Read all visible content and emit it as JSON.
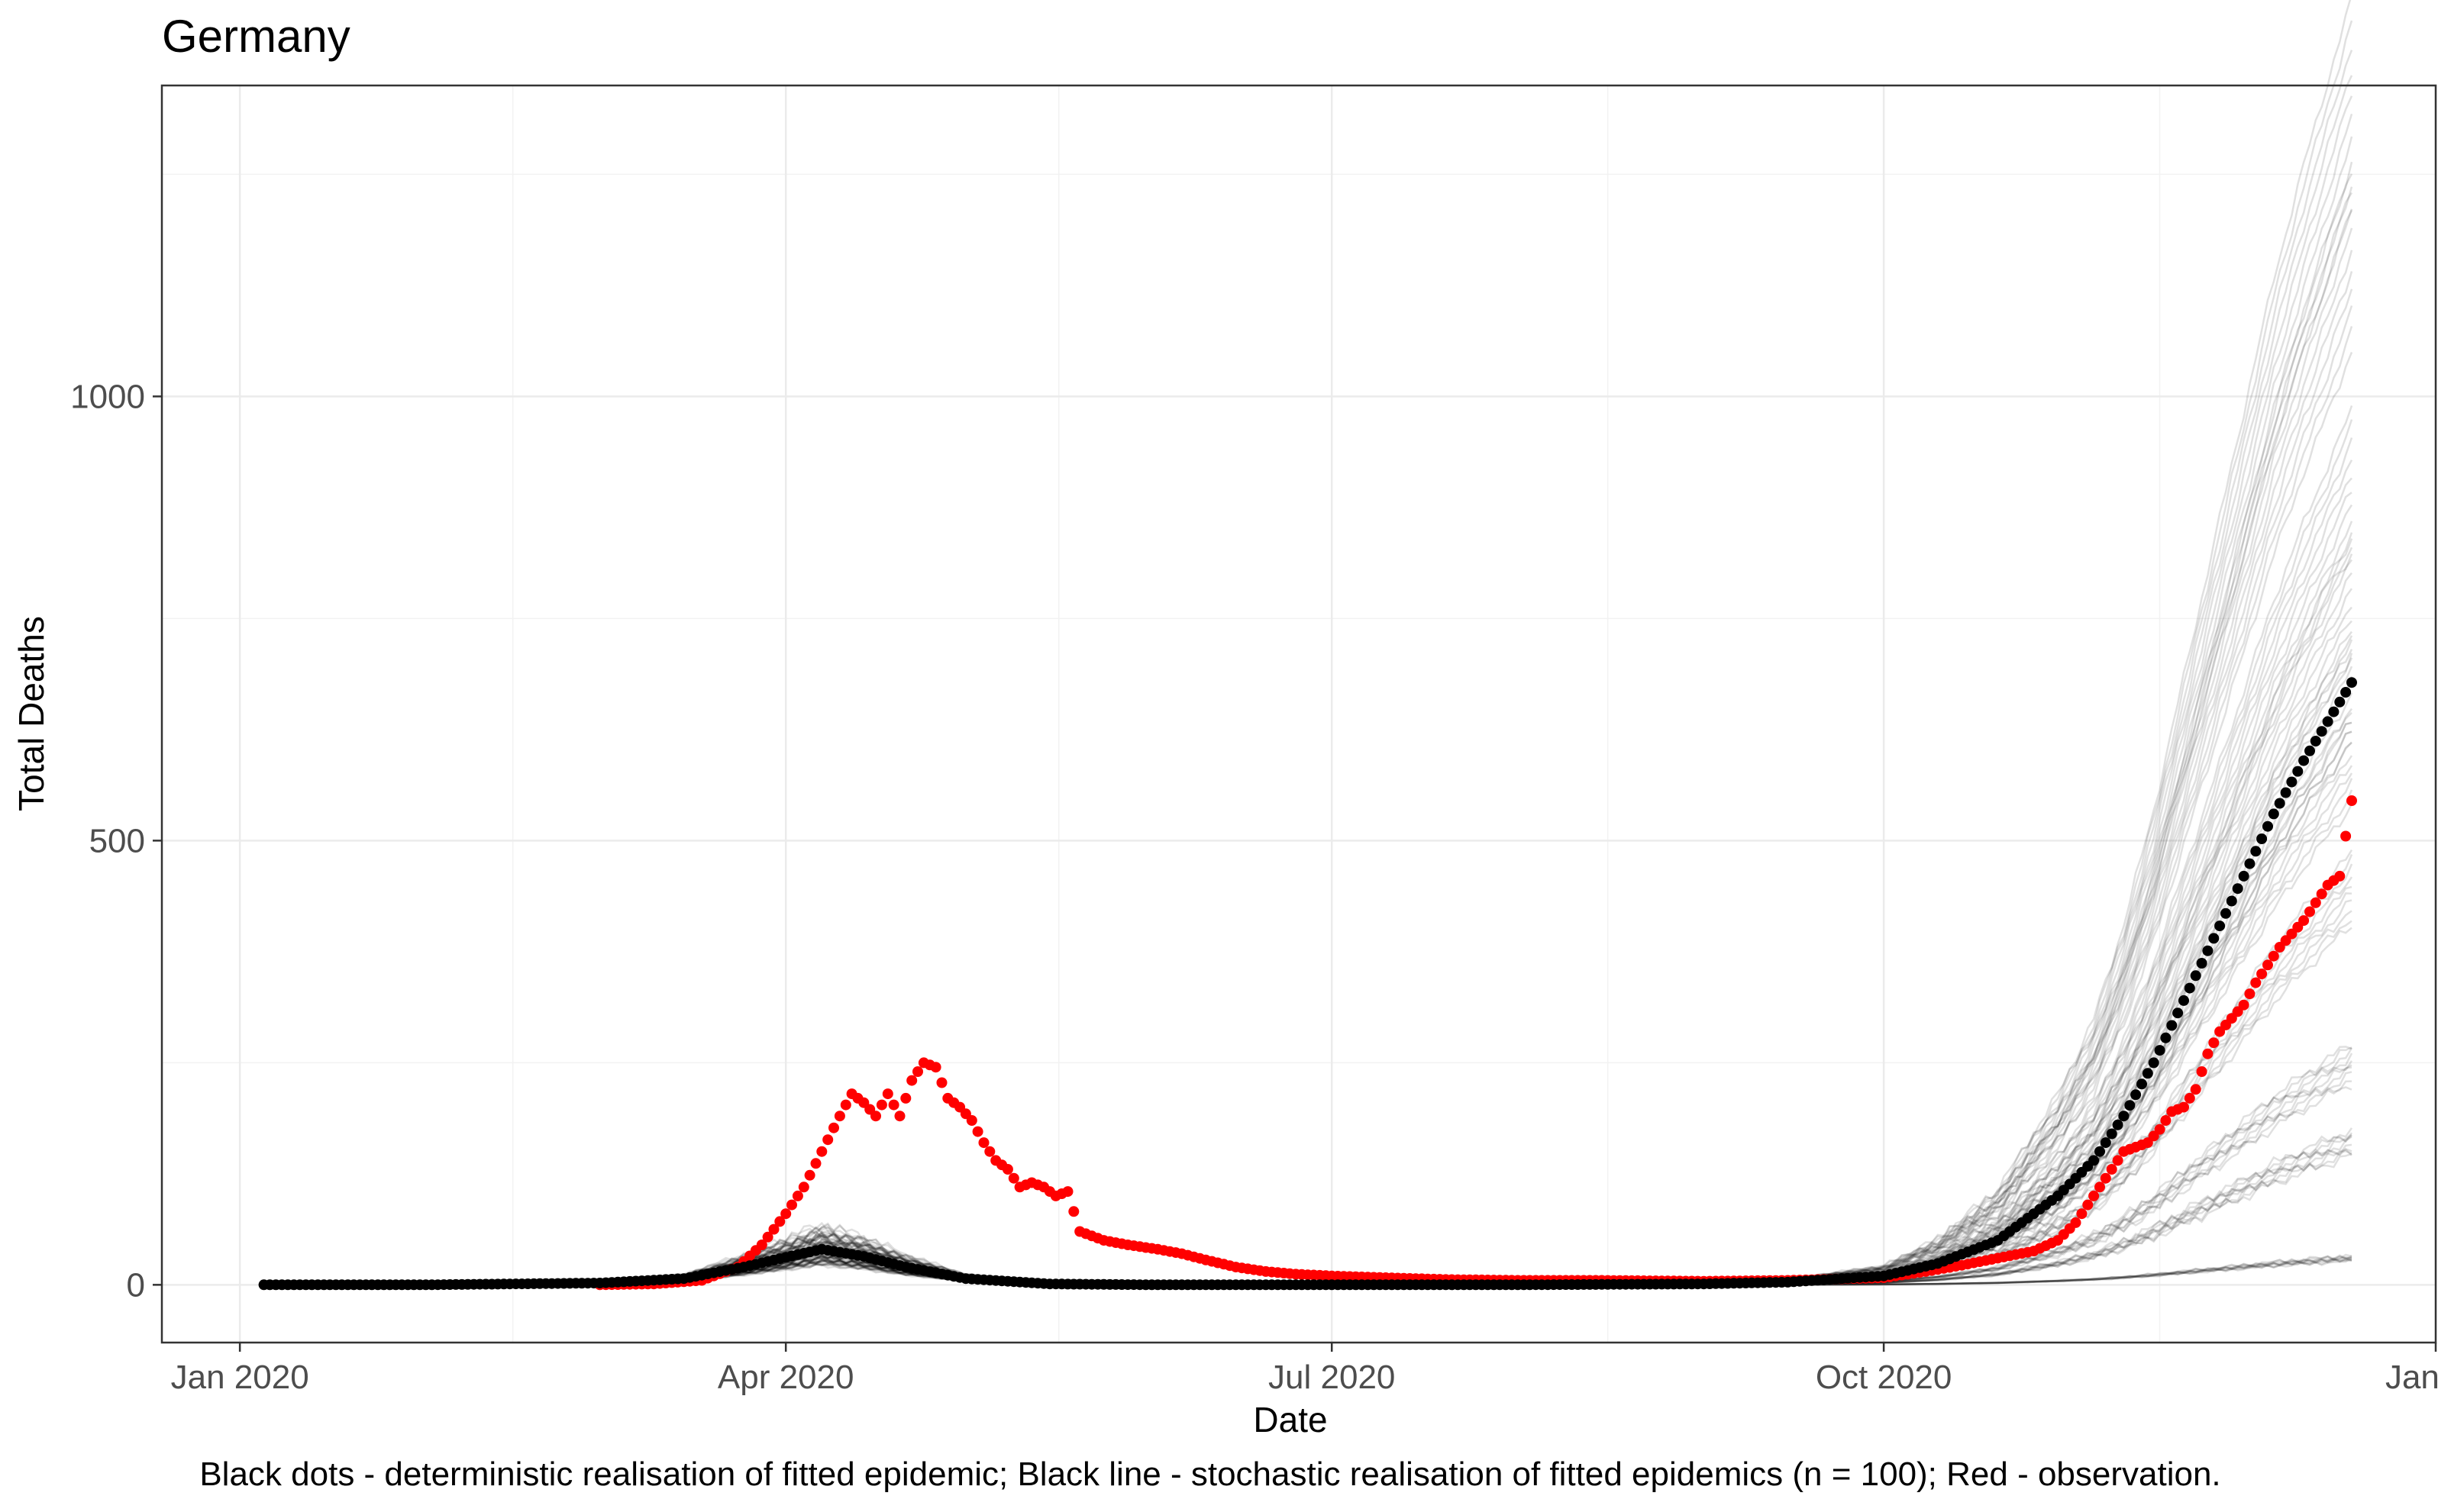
{
  "chart_data": {
    "type": "scatter",
    "title": "Germany",
    "xlabel": "Date",
    "ylabel": "Total Deaths",
    "caption": "Black dots - deterministic realisation of fitted epidemic; Black line - stochastic realisation of fitted epidemics (n = 100); Red - observation.",
    "x_axis": {
      "type": "date",
      "range": [
        "2019-12-19",
        "2021-01-01"
      ],
      "ticks": [
        {
          "date": "2020-01-01",
          "label": "Jan 2020"
        },
        {
          "date": "2020-04-01",
          "label": "Apr 2020"
        },
        {
          "date": "2020-07-01",
          "label": "Jul 2020"
        },
        {
          "date": "2020-10-01",
          "label": "Oct 2020"
        },
        {
          "date": "2021-01-01",
          "label": "Jan 20"
        }
      ]
    },
    "y_axis": {
      "range": [
        -65,
        1350
      ],
      "ticks": [
        {
          "value": 0,
          "label": "0"
        },
        {
          "value": 500,
          "label": "500"
        },
        {
          "value": 1000,
          "label": "1000"
        }
      ]
    },
    "grid": true,
    "colors": {
      "observation": "#ff0000",
      "deterministic": "#000000",
      "stochastic": "#000000",
      "grid": "#ebebeb",
      "panel_border": "#333333"
    },
    "series": [
      {
        "role": "deterministic",
        "mark": "dots",
        "color": "#000000",
        "points": [
          [
            "2020-01-05",
            0
          ],
          [
            "2020-02-01",
            0
          ],
          [
            "2020-03-01",
            2
          ],
          [
            "2020-03-15",
            7
          ],
          [
            "2020-03-25",
            20
          ],
          [
            "2020-04-01",
            31
          ],
          [
            "2020-04-07",
            40
          ],
          [
            "2020-04-14",
            32
          ],
          [
            "2020-04-21",
            20
          ],
          [
            "2020-05-01",
            7
          ],
          [
            "2020-05-15",
            1
          ],
          [
            "2020-06-01",
            0
          ],
          [
            "2020-08-01",
            0
          ],
          [
            "2020-09-01",
            1
          ],
          [
            "2020-09-15",
            3
          ],
          [
            "2020-10-01",
            10
          ],
          [
            "2020-10-10",
            24
          ],
          [
            "2020-10-20",
            50
          ],
          [
            "2020-10-30",
            100
          ],
          [
            "2020-11-05",
            140
          ],
          [
            "2020-11-10",
            190
          ],
          [
            "2020-11-15",
            250
          ],
          [
            "2020-11-20",
            320
          ],
          [
            "2020-11-25",
            390
          ],
          [
            "2020-11-30",
            460
          ],
          [
            "2020-12-05",
            530
          ],
          [
            "2020-12-10",
            590
          ],
          [
            "2020-12-15",
            645
          ],
          [
            "2020-12-18",
            678
          ]
        ]
      },
      {
        "role": "observation",
        "mark": "dots",
        "color": "#ff0000",
        "points": [
          [
            "2020-03-01",
            0
          ],
          [
            "2020-03-10",
            1
          ],
          [
            "2020-03-18",
            5
          ],
          [
            "2020-03-24",
            20
          ],
          [
            "2020-03-28",
            45
          ],
          [
            "2020-04-01",
            80
          ],
          [
            "2020-04-04",
            110
          ],
          [
            "2020-04-07",
            150
          ],
          [
            "2020-04-10",
            190
          ],
          [
            "2020-04-12",
            215
          ],
          [
            "2020-04-14",
            205
          ],
          [
            "2020-04-16",
            190
          ],
          [
            "2020-04-18",
            215
          ],
          [
            "2020-04-20",
            190
          ],
          [
            "2020-04-22",
            230
          ],
          [
            "2020-04-24",
            250
          ],
          [
            "2020-04-26",
            245
          ],
          [
            "2020-04-28",
            210
          ],
          [
            "2020-04-30",
            200
          ],
          [
            "2020-05-02",
            185
          ],
          [
            "2020-05-04",
            160
          ],
          [
            "2020-05-06",
            140
          ],
          [
            "2020-05-08",
            130
          ],
          [
            "2020-05-10",
            110
          ],
          [
            "2020-05-12",
            115
          ],
          [
            "2020-05-14",
            110
          ],
          [
            "2020-05-16",
            100
          ],
          [
            "2020-05-18",
            105
          ],
          [
            "2020-05-20",
            60
          ],
          [
            "2020-05-24",
            50
          ],
          [
            "2020-05-28",
            45
          ],
          [
            "2020-06-02",
            40
          ],
          [
            "2020-06-06",
            35
          ],
          [
            "2020-06-10",
            28
          ],
          [
            "2020-06-15",
            20
          ],
          [
            "2020-06-20",
            15
          ],
          [
            "2020-06-25",
            12
          ],
          [
            "2020-07-01",
            10
          ],
          [
            "2020-07-10",
            8
          ],
          [
            "2020-07-20",
            6
          ],
          [
            "2020-08-01",
            5
          ],
          [
            "2020-08-15",
            5
          ],
          [
            "2020-09-01",
            4
          ],
          [
            "2020-09-15",
            5
          ],
          [
            "2020-10-01",
            8
          ],
          [
            "2020-10-08",
            15
          ],
          [
            "2020-10-14",
            22
          ],
          [
            "2020-10-20",
            30
          ],
          [
            "2020-10-26",
            38
          ],
          [
            "2020-10-30",
            50
          ],
          [
            "2020-11-02",
            70
          ],
          [
            "2020-11-04",
            90
          ],
          [
            "2020-11-06",
            110
          ],
          [
            "2020-11-08",
            130
          ],
          [
            "2020-11-10",
            150
          ],
          [
            "2020-11-12",
            155
          ],
          [
            "2020-11-14",
            160
          ],
          [
            "2020-11-16",
            175
          ],
          [
            "2020-11-18",
            195
          ],
          [
            "2020-11-20",
            200
          ],
          [
            "2020-11-22",
            220
          ],
          [
            "2020-11-24",
            260
          ],
          [
            "2020-11-26",
            285
          ],
          [
            "2020-11-28",
            300
          ],
          [
            "2020-11-30",
            315
          ],
          [
            "2020-12-02",
            340
          ],
          [
            "2020-12-04",
            360
          ],
          [
            "2020-12-06",
            380
          ],
          [
            "2020-12-08",
            395
          ],
          [
            "2020-12-10",
            410
          ],
          [
            "2020-12-12",
            430
          ],
          [
            "2020-12-14",
            450
          ],
          [
            "2020-12-16",
            460
          ],
          [
            "2020-12-17",
            505
          ],
          [
            "2020-12-18",
            545
          ]
        ]
      },
      {
        "role": "stochastic",
        "mark": "lines",
        "color": "#000000",
        "opacity": 0.12,
        "n": 100,
        "trajectories": [
          {
            "peak_spring": 40,
            "end_value": 680
          },
          {
            "peak_spring": 25,
            "end_value": 30
          },
          {
            "peak_spring": 60,
            "end_value": 1330
          },
          {
            "peak_spring": 35,
            "end_value": 900
          },
          {
            "peak_spring": 45,
            "end_value": 450
          },
          {
            "peak_spring": 30,
            "end_value": 250
          },
          {
            "peak_spring": 55,
            "end_value": 1150
          },
          {
            "peak_spring": 38,
            "end_value": 600
          },
          {
            "peak_spring": 50,
            "end_value": 780
          },
          {
            "peak_spring": 28,
            "end_value": 160
          }
        ]
      }
    ]
  }
}
